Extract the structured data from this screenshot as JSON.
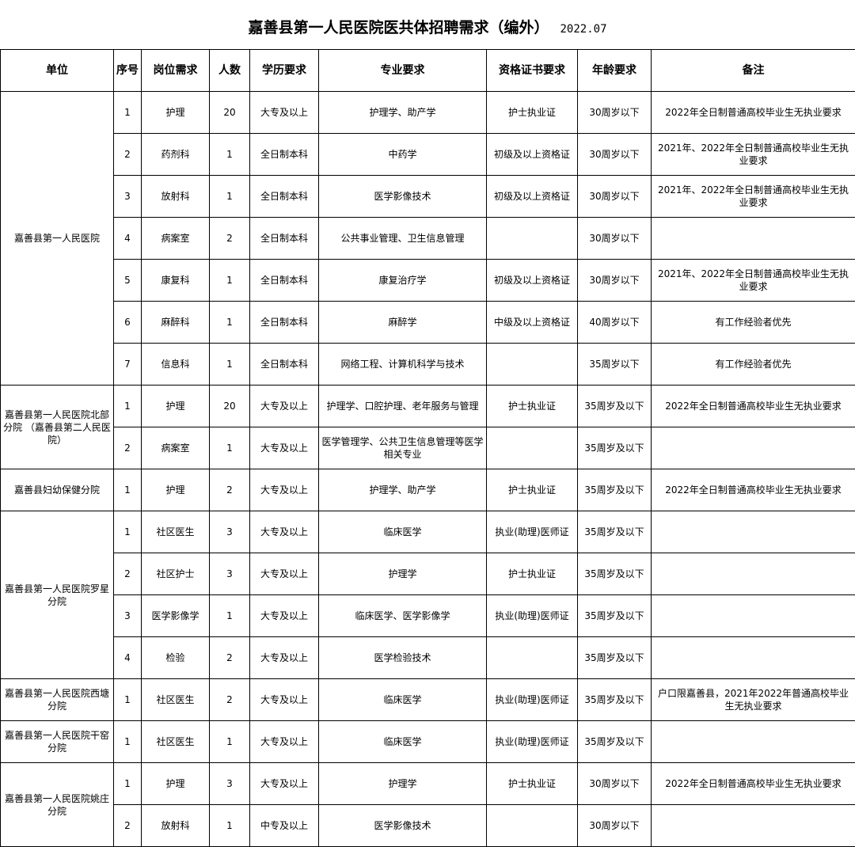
{
  "title": "嘉善县第一人民医院医共体招聘需求（编外）",
  "date": "2022.07",
  "headers": [
    "单位",
    "序号",
    "岗位需求",
    "人数",
    "学历要求",
    "专业要求",
    "资格证书要求",
    "年龄要求",
    "备注"
  ],
  "groups": [
    {
      "unit": "嘉善县第一人民医院",
      "rows": [
        [
          "1",
          "护理",
          "20",
          "大专及以上",
          "护理学、助产学",
          "护士执业证",
          "30周岁以下",
          "2022年全日制普通高校毕业生无执业要求"
        ],
        [
          "2",
          "药剂科",
          "1",
          "全日制本科",
          "中药学",
          "初级及以上资格证",
          "30周岁以下",
          "2021年、2022年全日制普通高校毕业生无执业要求"
        ],
        [
          "3",
          "放射科",
          "1",
          "全日制本科",
          "医学影像技术",
          "初级及以上资格证",
          "30周岁以下",
          "2021年、2022年全日制普通高校毕业生无执业要求"
        ],
        [
          "4",
          "病案室",
          "2",
          "全日制本科",
          "公共事业管理、卫生信息管理",
          "",
          "30周岁以下",
          ""
        ],
        [
          "5",
          "康复科",
          "1",
          "全日制本科",
          "康复治疗学",
          "初级及以上资格证",
          "30周岁以下",
          "2021年、2022年全日制普通高校毕业生无执业要求"
        ],
        [
          "6",
          "麻醉科",
          "1",
          "全日制本科",
          "麻醉学",
          "中级及以上资格证",
          "40周岁以下",
          "有工作经验者优先"
        ],
        [
          "7",
          "信息科",
          "1",
          "全日制本科",
          "网络工程、计算机科学与技术",
          "",
          "35周岁以下",
          "有工作经验者优先"
        ]
      ]
    },
    {
      "unit": "嘉善县第一人民医院北部分院 （嘉善县第二人民医院）",
      "rows": [
        [
          "1",
          "护理",
          "20",
          "大专及以上",
          "护理学、口腔护理、老年服务与管理",
          "护士执业证",
          "35周岁及以下",
          "2022年全日制普通高校毕业生无执业要求"
        ],
        [
          "2",
          "病案室",
          "1",
          "大专及以上",
          "医学管理学、公共卫生信息管理等医学相关专业",
          "",
          "35周岁及以下",
          ""
        ]
      ]
    },
    {
      "unit": "嘉善县妇幼保健分院",
      "rows": [
        [
          "1",
          "护理",
          "2",
          "大专及以上",
          "护理学、助产学",
          "护士执业证",
          "35周岁及以下",
          "2022年全日制普通高校毕业生无执业要求"
        ]
      ]
    },
    {
      "unit": "嘉善县第一人民医院罗星分院",
      "rows": [
        [
          "1",
          "社区医生",
          "3",
          "大专及以上",
          "临床医学",
          "执业(助理)医师证",
          "35周岁及以下",
          ""
        ],
        [
          "2",
          "社区护士",
          "3",
          "大专及以上",
          "护理学",
          "护士执业证",
          "35周岁及以下",
          ""
        ],
        [
          "3",
          "医学影像学",
          "1",
          "大专及以上",
          "临床医学、医学影像学",
          "执业(助理)医师证",
          "35周岁及以下",
          ""
        ],
        [
          "4",
          "检验",
          "2",
          "大专及以上",
          "医学检验技术",
          "",
          "35周岁及以下",
          ""
        ]
      ]
    },
    {
      "unit": "嘉善县第一人民医院西塘分院",
      "rows": [
        [
          "1",
          "社区医生",
          "2",
          "大专及以上",
          "临床医学",
          "执业(助理)医师证",
          "35周岁及以下",
          "户口限嘉善县，2021年2022年普通高校毕业生无执业要求"
        ]
      ]
    },
    {
      "unit": "嘉善县第一人民医院干窑分院",
      "rows": [
        [
          "1",
          "社区医生",
          "1",
          "大专及以上",
          "临床医学",
          "执业(助理)医师证",
          "35周岁及以下",
          ""
        ]
      ]
    },
    {
      "unit": "嘉善县第一人民医院姚庄分院",
      "rows": [
        [
          "1",
          "护理",
          "3",
          "大专及以上",
          "护理学",
          "护士执业证",
          "30周岁以下",
          "2022年全日制普通高校毕业生无执业要求"
        ],
        [
          "2",
          "放射科",
          "1",
          "中专及以上",
          "医学影像技术",
          "",
          "30周岁以下",
          ""
        ]
      ]
    }
  ]
}
